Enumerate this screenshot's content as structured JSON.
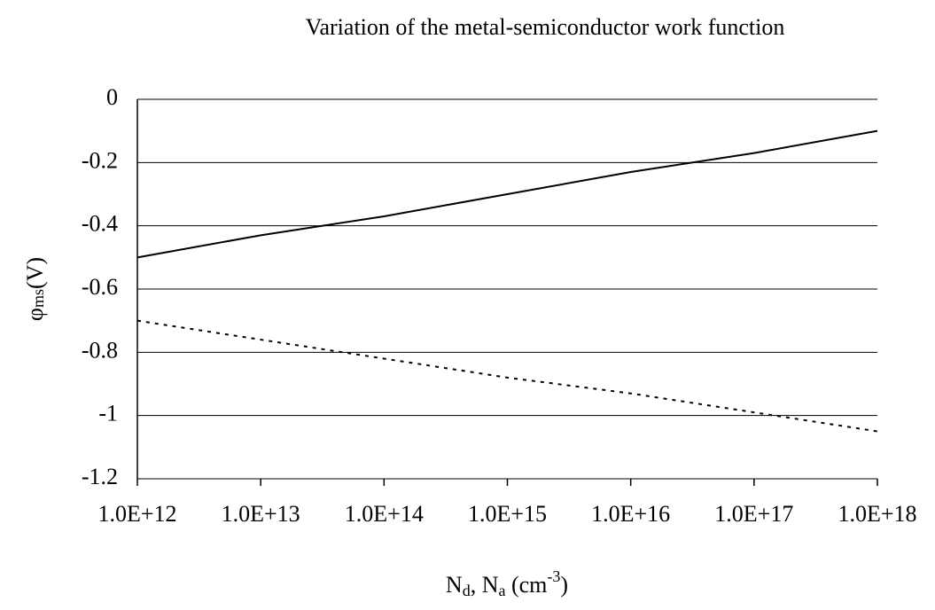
{
  "chart_data": {
    "type": "line",
    "title": "Variation of the metal-semiconductor work function",
    "ylabel_parts": [
      "φ",
      "ms",
      "(V)"
    ],
    "xlabel_parts": [
      "N",
      "d",
      ", N",
      "a",
      " (cm",
      "-3",
      ")"
    ],
    "xscale": "log",
    "x": [
      1000000000000.0,
      10000000000000.0,
      100000000000000.0,
      1000000000000000.0,
      1e+16,
      1e+17,
      1e+18
    ],
    "series": [
      {
        "color": "#000000",
        "style": "solid",
        "values": [
          -0.5,
          -0.43,
          -0.37,
          -0.3,
          -0.23,
          -0.17,
          -0.1
        ]
      },
      {
        "color": "#000000",
        "style": "dotted",
        "values": [
          -0.7,
          -0.76,
          -0.82,
          -0.88,
          -0.93,
          -0.99,
          -1.05
        ]
      }
    ],
    "xlim": [
      1000000000000.0,
      1e+18
    ],
    "xticks": [
      {
        "value": 1000000000000.0,
        "label": "1.0E+12"
      },
      {
        "value": 10000000000000.0,
        "label": "1.0E+13"
      },
      {
        "value": 100000000000000.0,
        "label": "1.0E+14"
      },
      {
        "value": 1000000000000000.0,
        "label": "1.0E+15"
      },
      {
        "value": 1e+16,
        "label": "1.0E+16"
      },
      {
        "value": 1e+17,
        "label": "1.0E+17"
      },
      {
        "value": 1e+18,
        "label": "1.0E+18"
      }
    ],
    "ylim": [
      -1.2,
      0
    ],
    "yticks": [
      0,
      -0.2,
      -0.4,
      -0.6,
      -0.8,
      -1,
      -1.2
    ],
    "grid": true
  }
}
